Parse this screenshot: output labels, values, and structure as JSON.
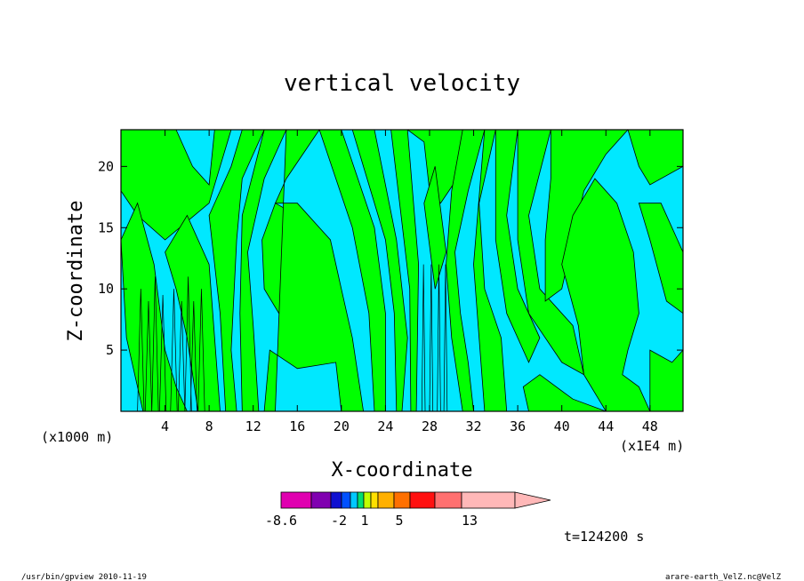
{
  "chart_data": {
    "type": "heatmap",
    "title": "vertical velocity",
    "xlabel": "X-coordinate",
    "ylabel": "Z-coordinate",
    "x_unit_left": "(x1000 m)",
    "x_unit_right": "(x1E4 m)",
    "xlim": [
      0,
      51
    ],
    "ylim": [
      0,
      23
    ],
    "x_ticks": [
      4,
      8,
      12,
      16,
      20,
      24,
      28,
      32,
      36,
      40,
      44,
      48
    ],
    "y_ticks": [
      5,
      10,
      15,
      20
    ],
    "x_tick_labels": [
      "4",
      "8",
      "12",
      "16",
      "20",
      "24",
      "28",
      "32",
      "36",
      "40",
      "44",
      "48"
    ],
    "y_tick_labels": [
      "5",
      "10",
      "15",
      "20"
    ],
    "fill_colors": {
      "negative": "#00e8ff",
      "positive": "#00ff00"
    },
    "colorbar": {
      "colors": [
        "#e000b0",
        "#8000b0",
        "#1010d0",
        "#0050ff",
        "#00c8ff",
        "#00e070",
        "#c0ff00",
        "#ffe000",
        "#ffb000",
        "#ff7000",
        "#ff1010",
        "#ff7070",
        "#ffb8b8"
      ],
      "labels": [
        "-8.6",
        "-2",
        "1",
        "5",
        "13"
      ]
    },
    "time_label": "t=124200 s"
  },
  "footer": {
    "left": "/usr/bin/gpview  2010-11-19",
    "right": "arare-earth_VelZ.nc@VelZ"
  }
}
